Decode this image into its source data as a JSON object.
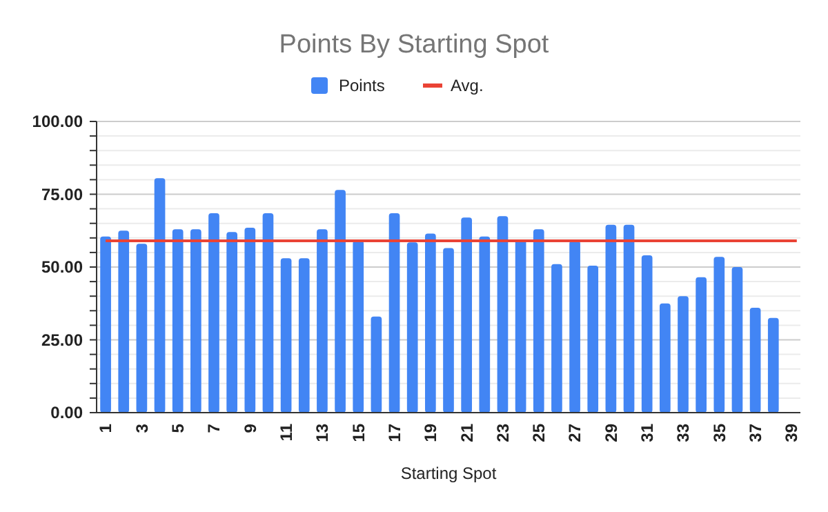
{
  "chart_data": {
    "type": "bar",
    "title": "Points By Starting Spot",
    "xlabel": "Starting Spot",
    "categories": [
      "1",
      null,
      "3",
      null,
      "5",
      null,
      "7",
      null,
      "9",
      null,
      "11",
      null,
      "13",
      null,
      "15",
      null,
      "17",
      null,
      "19",
      null,
      "21",
      null,
      "23",
      null,
      "25",
      null,
      "27",
      null,
      "29",
      null,
      "31",
      null,
      "33",
      null,
      "35",
      null,
      "37",
      null,
      "39"
    ],
    "series": [
      {
        "name": "Points",
        "color": "#4285f4",
        "values": [
          60.5,
          62.5,
          58,
          80.5,
          63,
          63,
          68.5,
          62,
          63.5,
          68.5,
          53,
          53,
          63,
          76.5,
          59,
          33,
          68.5,
          58.5,
          61.5,
          56.5,
          67,
          60.5,
          67.5,
          59.5,
          63,
          51,
          59,
          50.5,
          64.5,
          64.5,
          54,
          37.5,
          40,
          46.5,
          53.5,
          50,
          36,
          32.5,
          null
        ]
      }
    ],
    "ref_lines": [
      {
        "axis": "y",
        "value": 59,
        "label": "Avg.",
        "color": "#ea4335"
      }
    ],
    "ylim": [
      0,
      100
    ],
    "yticks": [
      {
        "value": 0,
        "label": "0.00"
      },
      {
        "value": 5,
        "label": null
      },
      {
        "value": 10,
        "label": null
      },
      {
        "value": 15,
        "label": null
      },
      {
        "value": 20,
        "label": null
      },
      {
        "value": 25,
        "label": "25.00"
      },
      {
        "value": 30,
        "label": null
      },
      {
        "value": 35,
        "label": null
      },
      {
        "value": 40,
        "label": null
      },
      {
        "value": 45,
        "label": null
      },
      {
        "value": 50,
        "label": "50.00"
      },
      {
        "value": 55,
        "label": null
      },
      {
        "value": 60,
        "label": null
      },
      {
        "value": 65,
        "label": null
      },
      {
        "value": 70,
        "label": null
      },
      {
        "value": 75,
        "label": "75.00"
      },
      {
        "value": 80,
        "label": null
      },
      {
        "value": 85,
        "label": null
      },
      {
        "value": 90,
        "label": null
      },
      {
        "value": 95,
        "label": null
      },
      {
        "value": 100,
        "label": "100.00"
      }
    ],
    "grid": true,
    "legend": "top"
  }
}
